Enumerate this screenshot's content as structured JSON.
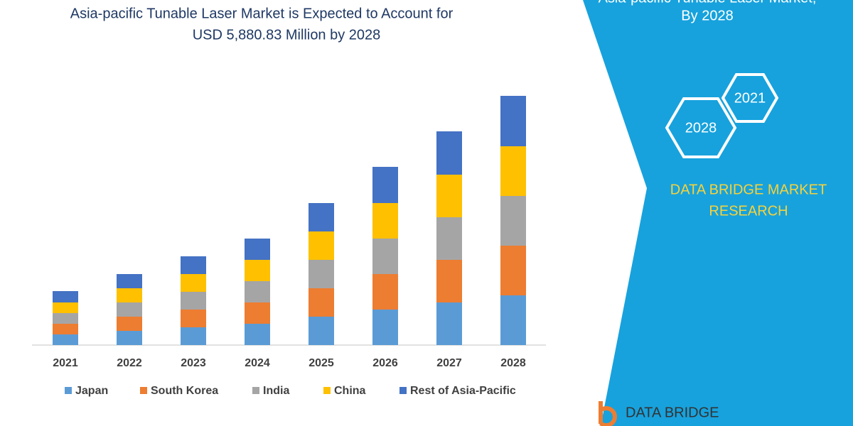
{
  "chart_data": {
    "type": "stacked-bar",
    "title": [
      "Asia-pacific Tunable Laser Market",
      "is Expected to Account for",
      "USD 5,880.83 Million by 2028"
    ],
    "categories": [
      "2021",
      "2022",
      "2023",
      "2024",
      "2025",
      "2026",
      "2027",
      "2028"
    ],
    "series": [
      {
        "name": "Japan",
        "color": "#5b9bd5",
        "values": [
          15,
          20,
          25,
          30,
          40,
          50,
          60,
          70
        ]
      },
      {
        "name": "South Korea",
        "color": "#ed7d31",
        "values": [
          15,
          20,
          25,
          30,
          40,
          50,
          60,
          70
        ]
      },
      {
        "name": "India",
        "color": "#a5a5a5",
        "values": [
          15,
          20,
          25,
          30,
          40,
          50,
          60,
          70
        ]
      },
      {
        "name": "China",
        "color": "#ffc000",
        "values": [
          15,
          20,
          25,
          30,
          40,
          50,
          60,
          70
        ]
      },
      {
        "name": "Rest of Asia-Pacific",
        "color": "#4472c4",
        "values": [
          16,
          20,
          25,
          30,
          40,
          51,
          61,
          71
        ]
      }
    ]
  },
  "side_panel": {
    "title": [
      "Asia-pacific Tunable Laser Market,",
      "By 2028"
    ],
    "hexagons": [
      "2021",
      "2028"
    ],
    "brand": [
      "DATA BRIDGE MARKET",
      "RESEARCH"
    ],
    "logo": "DATA BRIDGE"
  }
}
